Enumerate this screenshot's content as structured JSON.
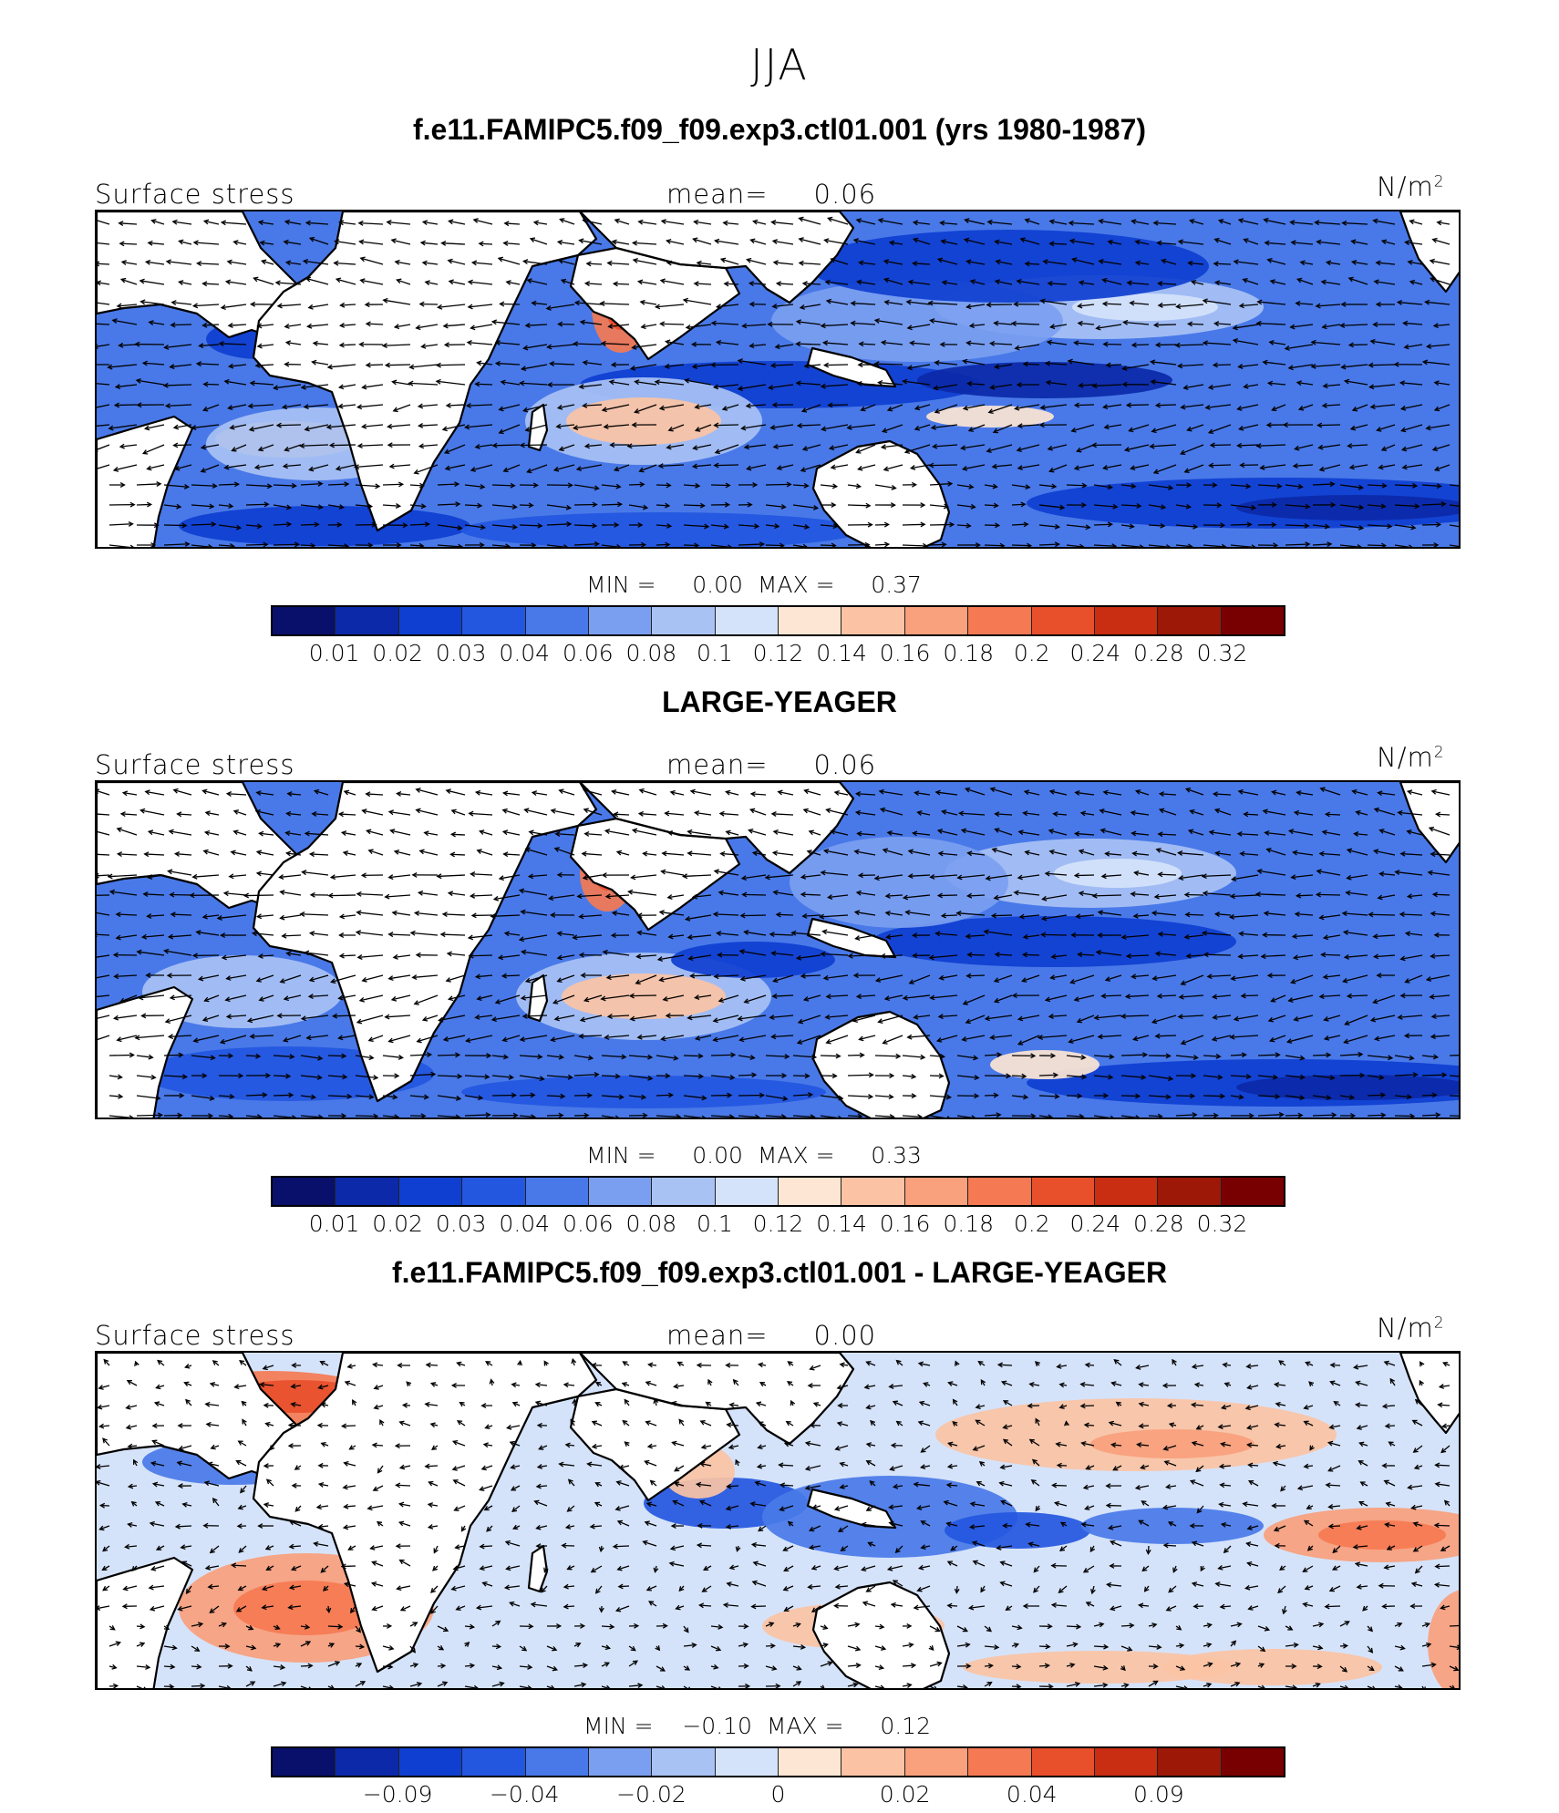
{
  "figure": {
    "season": "JJA"
  },
  "chart_data": [
    {
      "type": "heatmap",
      "title": "f.e11.FAMIPC5.f09_f09.exp3.ctl01.001 (yrs 1980-1987)",
      "variable": "Surface stress",
      "mean_label": "mean=",
      "mean": "0.06",
      "units": "N/m",
      "units_exp": "2",
      "min_label": "MIN =",
      "min": "0.00",
      "max_label": "MAX =",
      "max": "0.37",
      "levels": [
        "0.01",
        "0.02",
        "0.03",
        "0.04",
        "0.06",
        "0.08",
        "0.1",
        "0.12",
        "0.14",
        "0.16",
        "0.18",
        "0.2",
        "0.24",
        "0.28",
        "0.32"
      ],
      "colors": [
        "#08106b",
        "#0b29a8",
        "#0f3fd0",
        "#2457e0",
        "#4979e8",
        "#7b9ff0",
        "#a9c2f4",
        "#d5e3fa",
        "#fde6d3",
        "#fbc3a4",
        "#f9a07c",
        "#f57953",
        "#e84f2b",
        "#c92d12",
        "#9d1807",
        "#780000"
      ]
    },
    {
      "type": "heatmap",
      "title": "LARGE-YEAGER",
      "variable": "Surface stress",
      "mean_label": "mean=",
      "mean": "0.06",
      "units": "N/m",
      "units_exp": "2",
      "min_label": "MIN =",
      "min": "0.00",
      "max_label": "MAX =",
      "max": "0.33",
      "levels": [
        "0.01",
        "0.02",
        "0.03",
        "0.04",
        "0.06",
        "0.08",
        "0.1",
        "0.12",
        "0.14",
        "0.16",
        "0.18",
        "0.2",
        "0.24",
        "0.28",
        "0.32"
      ],
      "colors": [
        "#08106b",
        "#0b29a8",
        "#0f3fd0",
        "#2457e0",
        "#4979e8",
        "#7b9ff0",
        "#a9c2f4",
        "#d5e3fa",
        "#fde6d3",
        "#fbc3a4",
        "#f9a07c",
        "#f57953",
        "#e84f2b",
        "#c92d12",
        "#9d1807",
        "#780000"
      ]
    },
    {
      "type": "heatmap",
      "title": "f.e11.FAMIPC5.f09_f09.exp3.ctl01.001 - LARGE-YEAGER",
      "variable": "Surface stress",
      "mean_label": "mean=",
      "mean": "0.00",
      "units": "N/m",
      "units_exp": "2",
      "min_label": "MIN =",
      "min": "−0.10",
      "max_label": "MAX =",
      "max": "0.12",
      "levels": [
        "−0.09",
        "−0.04",
        "−0.02",
        "0",
        "0.02",
        "0.04",
        "0.09"
      ],
      "colors": [
        "#08106b",
        "#0b29a8",
        "#0f3fd0",
        "#2457e0",
        "#4979e8",
        "#7b9ff0",
        "#a9c2f4",
        "#d5e3fa",
        "#fde6d3",
        "#fbc3a4",
        "#f9a07c",
        "#f57953",
        "#e84f2b",
        "#c92d12",
        "#9d1807",
        "#780000"
      ]
    }
  ]
}
